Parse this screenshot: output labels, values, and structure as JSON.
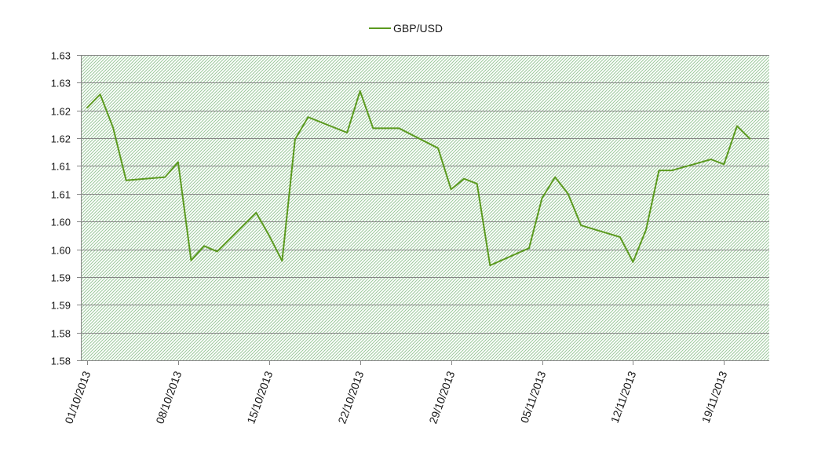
{
  "chart_data": {
    "type": "line",
    "title": "",
    "xlabel": "",
    "ylabel": "",
    "legend": {
      "position": "top-center"
    },
    "grid": true,
    "plot_background": "hatched-green",
    "ylim": [
      1.575,
      1.63
    ],
    "y_tick_values": [
      1.575,
      1.58,
      1.585,
      1.59,
      1.595,
      1.6,
      1.605,
      1.61,
      1.615,
      1.62,
      1.625,
      1.63
    ],
    "y_tick_labels": [
      "1.58",
      "1.58",
      "1.59",
      "1.59",
      "1.60",
      "1.60",
      "1.61",
      "1.61",
      "1.62",
      "1.62",
      "1.63",
      "1.63"
    ],
    "x_tick_labels": [
      "01/10/2013",
      "08/10/2013",
      "15/10/2013",
      "22/10/2013",
      "29/10/2013",
      "05/11/2013",
      "12/11/2013",
      "19/11/2013"
    ],
    "x_tick_dates": [
      "2013-10-01",
      "2013-10-08",
      "2013-10-15",
      "2013-10-22",
      "2013-10-29",
      "2013-11-05",
      "2013-11-12",
      "2013-11-19"
    ],
    "xlim": [
      "2013-10-01",
      "2013-11-22"
    ],
    "series": [
      {
        "name": "GBP/USD",
        "color": "#5b9a1f",
        "points": [
          {
            "date": "2013-10-01",
            "value": 1.6205
          },
          {
            "date": "2013-10-02",
            "value": 1.6229
          },
          {
            "date": "2013-10-03",
            "value": 1.6169
          },
          {
            "date": "2013-10-04",
            "value": 1.6074
          },
          {
            "date": "2013-10-07",
            "value": 1.608
          },
          {
            "date": "2013-10-08",
            "value": 1.6107
          },
          {
            "date": "2013-10-09",
            "value": 1.593
          },
          {
            "date": "2013-10-10",
            "value": 1.5956
          },
          {
            "date": "2013-10-11",
            "value": 1.5946
          },
          {
            "date": "2013-10-14",
            "value": 1.6016
          },
          {
            "date": "2013-10-15",
            "value": 1.5975
          },
          {
            "date": "2013-10-16",
            "value": 1.5929
          },
          {
            "date": "2013-10-17",
            "value": 1.6148
          },
          {
            "date": "2013-10-18",
            "value": 1.6188
          },
          {
            "date": "2013-10-21",
            "value": 1.616
          },
          {
            "date": "2013-10-22",
            "value": 1.6235
          },
          {
            "date": "2013-10-23",
            "value": 1.6168
          },
          {
            "date": "2013-10-25",
            "value": 1.6168
          },
          {
            "date": "2013-10-28",
            "value": 1.6132
          },
          {
            "date": "2013-10-29",
            "value": 1.6058
          },
          {
            "date": "2013-10-30",
            "value": 1.6077
          },
          {
            "date": "2013-10-31",
            "value": 1.6068
          },
          {
            "date": "2013-11-01",
            "value": 1.5921
          },
          {
            "date": "2013-11-04",
            "value": 1.5952
          },
          {
            "date": "2013-11-05",
            "value": 1.6042
          },
          {
            "date": "2013-11-06",
            "value": 1.608
          },
          {
            "date": "2013-11-07",
            "value": 1.605
          },
          {
            "date": "2013-11-08",
            "value": 1.5993
          },
          {
            "date": "2013-11-11",
            "value": 1.5972
          },
          {
            "date": "2013-11-12",
            "value": 1.5927
          },
          {
            "date": "2013-11-13",
            "value": 1.5985
          },
          {
            "date": "2013-11-14",
            "value": 1.6092
          },
          {
            "date": "2013-11-15",
            "value": 1.6092
          },
          {
            "date": "2013-11-18",
            "value": 1.6112
          },
          {
            "date": "2013-11-19",
            "value": 1.6103
          },
          {
            "date": "2013-11-20",
            "value": 1.6172
          },
          {
            "date": "2013-11-21",
            "value": 1.6149
          }
        ]
      }
    ]
  }
}
